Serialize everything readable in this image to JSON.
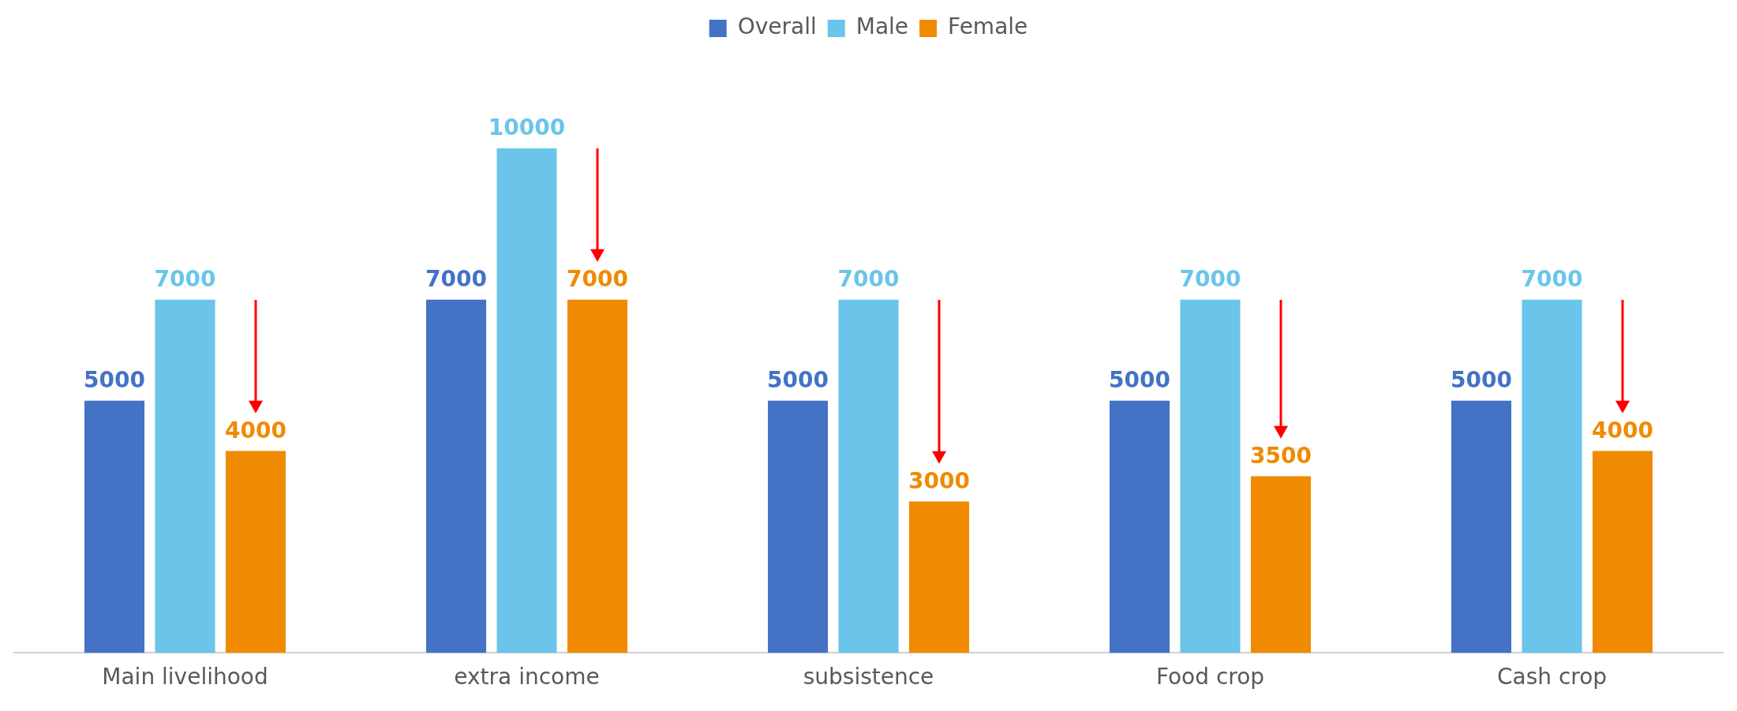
{
  "chart_data": {
    "type": "bar",
    "categories": [
      "Main livelihood",
      "extra income",
      "subsistence",
      "Food crop",
      "Cash crop"
    ],
    "series": [
      {
        "name": "Overall",
        "color": "#4472c4",
        "values": [
          5000,
          7000,
          5000,
          5000,
          5000
        ]
      },
      {
        "name": "Male",
        "color": "#6bc5ea",
        "values": [
          7000,
          10000,
          7000,
          7000,
          7000
        ]
      },
      {
        "name": "Female",
        "color": "#f08a00",
        "values": [
          4000,
          7000,
          3000,
          3500,
          4000
        ]
      }
    ],
    "data_labels": true,
    "legend": "top",
    "grid": false
  }
}
